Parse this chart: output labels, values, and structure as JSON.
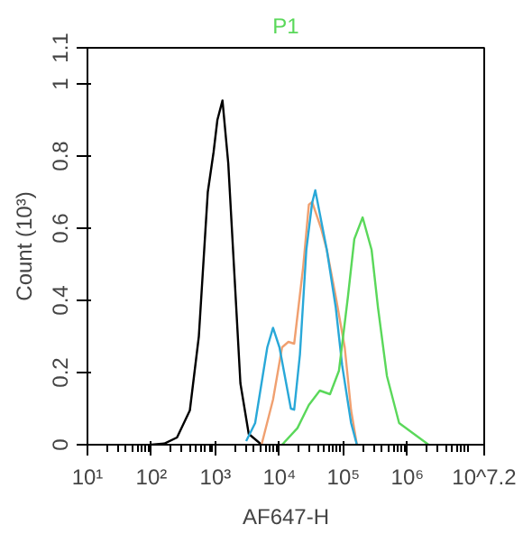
{
  "chart_data": {
    "type": "line",
    "title": "P1",
    "xlabel": "AF647-H",
    "ylabel": "Count (10³)",
    "log": "x",
    "grid": false,
    "marker": "none",
    "line_style": "solid",
    "xlim": [
      10,
      15848932
    ],
    "ylim": [
      0,
      1.1
    ],
    "xticks": [
      {
        "value": 10,
        "label": "10¹"
      },
      {
        "value": 100,
        "label": "10²"
      },
      {
        "value": 1000,
        "label": "10³"
      },
      {
        "value": 10000,
        "label": "10⁴"
      },
      {
        "value": 100000,
        "label": "10⁵"
      },
      {
        "value": 1000000,
        "label": "10⁶"
      },
      {
        "value": 15848932,
        "label": "10^7.2"
      }
    ],
    "yticks": [
      0,
      0.2,
      0.4,
      0.6,
      0.8,
      1,
      1.1
    ],
    "series": [
      {
        "color": "#000000",
        "x": [
          100,
          158,
          251,
          398,
          550,
          759,
          933,
          1072,
          1288,
          1585,
          1995,
          2455,
          3311,
          5248
        ],
        "values": [
          0,
          0.003,
          0.02,
          0.095,
          0.3,
          0.7,
          0.81,
          0.9,
          0.954,
          0.78,
          0.46,
          0.17,
          0.03,
          0
        ]
      },
      {
        "color": "#f0a070",
        "x": [
          5250,
          7940,
          11000,
          13800,
          17000,
          23400,
          28800,
          32400,
          44700,
          55000,
          75900,
          104700,
          131800,
          162200
        ],
        "values": [
          0,
          0.125,
          0.27,
          0.285,
          0.28,
          0.49,
          0.665,
          0.673,
          0.6,
          0.54,
          0.41,
          0.27,
          0.095,
          0
        ]
      },
      {
        "color": "#29a8d8",
        "x": [
          3020,
          4170,
          6460,
          7940,
          10000,
          15100,
          17000,
          20900,
          26300,
          32400,
          36300,
          55000,
          75900,
          95500,
          131800,
          162200
        ],
        "values": [
          0.01,
          0.06,
          0.27,
          0.324,
          0.27,
          0.1,
          0.097,
          0.25,
          0.54,
          0.67,
          0.705,
          0.54,
          0.38,
          0.22,
          0.06,
          0
        ]
      },
      {
        "color": "#5ad85a",
        "x": [
          11000,
          19100,
          28800,
          42700,
          61700,
          85100,
          117500,
          147900,
          199500,
          275400,
          346700,
          478600,
          741300,
          2138000
        ],
        "values": [
          0,
          0.046,
          0.11,
          0.15,
          0.14,
          0.205,
          0.41,
          0.57,
          0.63,
          0.54,
          0.38,
          0.19,
          0.06,
          0
        ]
      }
    ]
  }
}
